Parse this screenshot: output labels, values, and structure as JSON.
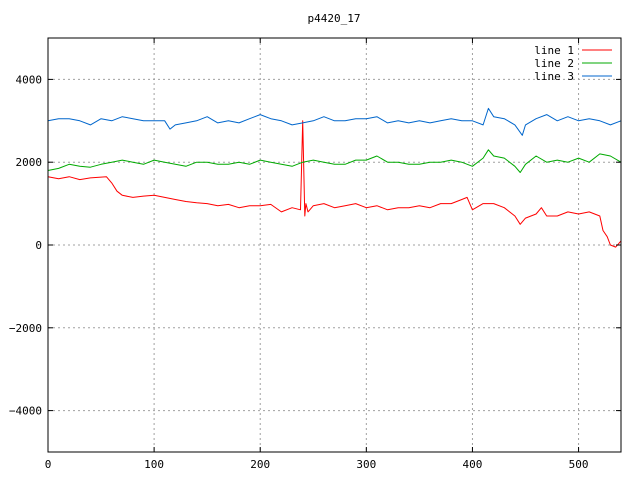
{
  "chart_data": {
    "type": "line",
    "title": "p4420_17",
    "xlabel": "",
    "ylabel": "",
    "xlim": [
      0,
      540
    ],
    "ylim": [
      -5000,
      5000
    ],
    "xticks": [
      0,
      100,
      200,
      300,
      400,
      500
    ],
    "yticks": [
      -4000,
      -2000,
      0,
      2000,
      4000
    ],
    "xtick_labels": [
      "0",
      "100",
      "200",
      "300",
      "400",
      "500"
    ],
    "ytick_labels": [
      "−4000",
      "−2000",
      "0",
      "2000",
      "4000"
    ],
    "grid": true,
    "legend_position": "top-right",
    "series": [
      {
        "name": "line 1",
        "color": "#ff0000",
        "x": [
          0,
          10,
          20,
          30,
          40,
          55,
          60,
          65,
          70,
          80,
          90,
          100,
          110,
          120,
          130,
          140,
          150,
          160,
          170,
          180,
          190,
          200,
          210,
          220,
          230,
          238,
          240,
          242,
          243,
          245,
          250,
          260,
          270,
          280,
          290,
          300,
          310,
          320,
          330,
          340,
          350,
          360,
          370,
          380,
          390,
          395,
          400,
          410,
          420,
          430,
          440,
          445,
          450,
          460,
          465,
          470,
          480,
          490,
          500,
          510,
          520,
          523,
          527,
          530,
          535,
          540
        ],
        "y": [
          1650,
          1600,
          1650,
          1580,
          1620,
          1650,
          1500,
          1300,
          1200,
          1150,
          1180,
          1200,
          1150,
          1100,
          1050,
          1020,
          1000,
          950,
          980,
          900,
          950,
          950,
          980,
          800,
          900,
          850,
          3000,
          700,
          1000,
          800,
          950,
          1000,
          900,
          950,
          1000,
          900,
          950,
          850,
          900,
          900,
          950,
          900,
          1000,
          1000,
          1100,
          1150,
          850,
          1000,
          1000,
          900,
          700,
          500,
          650,
          750,
          900,
          700,
          700,
          800,
          750,
          800,
          700,
          350,
          200,
          0,
          -50,
          100
        ]
      },
      {
        "name": "line 2",
        "color": "#00aa00",
        "x": [
          0,
          10,
          20,
          30,
          40,
          50,
          60,
          70,
          80,
          90,
          100,
          110,
          120,
          130,
          140,
          150,
          160,
          170,
          180,
          190,
          200,
          210,
          220,
          230,
          240,
          250,
          260,
          270,
          280,
          290,
          300,
          310,
          320,
          330,
          340,
          350,
          360,
          370,
          380,
          390,
          400,
          410,
          415,
          420,
          430,
          440,
          445,
          450,
          460,
          470,
          480,
          490,
          500,
          510,
          520,
          530,
          540
        ],
        "y": [
          1800,
          1850,
          1950,
          1900,
          1880,
          1950,
          2000,
          2050,
          2000,
          1950,
          2050,
          2000,
          1950,
          1900,
          2000,
          2000,
          1950,
          1950,
          2000,
          1950,
          2050,
          2000,
          1950,
          1900,
          2000,
          2050,
          2000,
          1950,
          1950,
          2050,
          2050,
          2150,
          2000,
          2000,
          1950,
          1950,
          2000,
          2000,
          2050,
          2000,
          1900,
          2100,
          2300,
          2150,
          2100,
          1900,
          1750,
          1950,
          2150,
          2000,
          2050,
          2000,
          2100,
          2000,
          2200,
          2150,
          2000
        ]
      },
      {
        "name": "line 3",
        "color": "#0066cc",
        "x": [
          0,
          10,
          20,
          30,
          40,
          50,
          60,
          70,
          80,
          90,
          100,
          110,
          115,
          120,
          130,
          140,
          150,
          160,
          170,
          180,
          190,
          200,
          210,
          220,
          230,
          240,
          250,
          260,
          270,
          280,
          290,
          300,
          310,
          320,
          330,
          340,
          350,
          360,
          370,
          380,
          390,
          400,
          410,
          415,
          420,
          430,
          440,
          447,
          450,
          460,
          470,
          480,
          490,
          500,
          510,
          520,
          530,
          540
        ],
        "y": [
          3000,
          3050,
          3050,
          3000,
          2900,
          3050,
          3000,
          3100,
          3050,
          3000,
          3000,
          3000,
          2800,
          2900,
          2950,
          3000,
          3100,
          2950,
          3000,
          2950,
          3050,
          3150,
          3050,
          3000,
          2900,
          2950,
          3000,
          3100,
          3000,
          3000,
          3050,
          3050,
          3100,
          2950,
          3000,
          2950,
          3000,
          2950,
          3000,
          3050,
          3000,
          3000,
          2900,
          3300,
          3100,
          3050,
          2900,
          2650,
          2900,
          3050,
          3150,
          3000,
          3100,
          3000,
          3050,
          3000,
          2900,
          3000
        ]
      }
    ]
  }
}
